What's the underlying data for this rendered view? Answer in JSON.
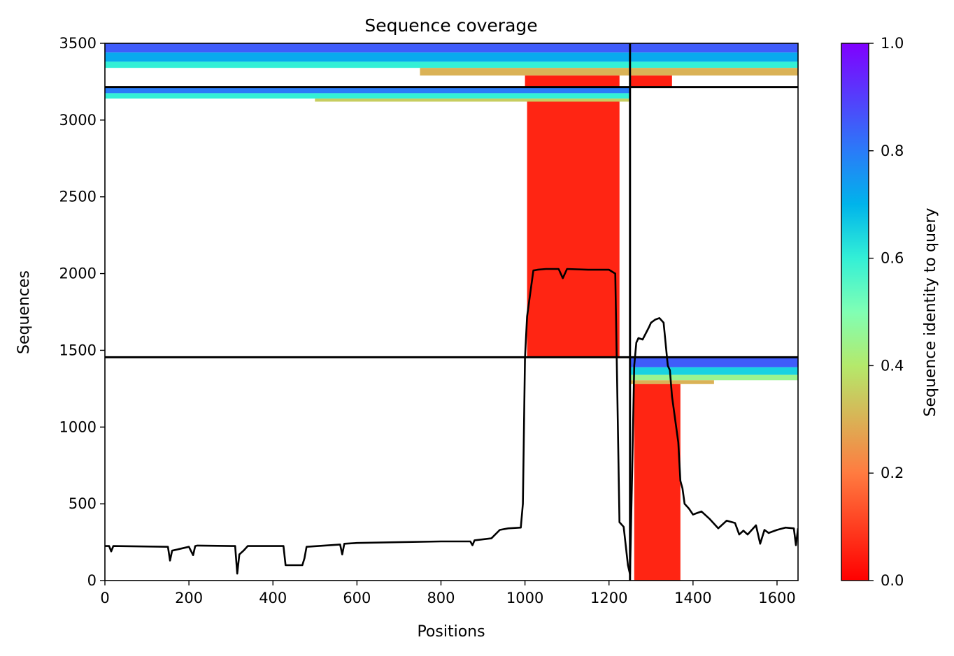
{
  "chart_data": {
    "type": "heatmap",
    "title": "Sequence coverage",
    "xlabel": "Positions",
    "ylabel": "Sequences",
    "xlim": [
      0,
      1650
    ],
    "ylim": [
      0,
      3500
    ],
    "xticks": [
      0,
      200,
      400,
      600,
      800,
      1000,
      1200,
      1400,
      1600
    ],
    "yticks": [
      0,
      500,
      1000,
      1500,
      2000,
      2500,
      3000,
      3500
    ],
    "grid": false,
    "colorbar": {
      "label": "Sequence identity to query",
      "colormap": "rainbow",
      "range": [
        0.0,
        1.0
      ],
      "ticks": [
        0.0,
        0.2,
        0.4,
        0.6,
        0.8,
        1.0
      ],
      "tick_labels": [
        "0.0",
        "0.2",
        "0.4",
        "0.6",
        "0.8",
        "1.0"
      ]
    },
    "chain_boundaries": {
      "vertical_x": [
        1250
      ],
      "horizontal_y": [
        1455,
        3215
      ]
    },
    "coverage_blocks": [
      {
        "x": [
          0,
          1650
        ],
        "y": [
          3440,
          3500
        ],
        "identity": 0.85
      },
      {
        "x": [
          0,
          1650
        ],
        "y": [
          3380,
          3440
        ],
        "identity": 0.72
      },
      {
        "x": [
          0,
          1650
        ],
        "y": [
          3340,
          3380
        ],
        "identity": 0.6
      },
      {
        "x": [
          750,
          1250
        ],
        "y": [
          3290,
          3340
        ],
        "identity": 0.3
      },
      {
        "x": [
          1250,
          1650
        ],
        "y": [
          3290,
          3340
        ],
        "identity": 0.3
      },
      {
        "x": [
          1000,
          1225
        ],
        "y": [
          3215,
          3290
        ],
        "identity": 0.05
      },
      {
        "x": [
          1250,
          1350
        ],
        "y": [
          3215,
          3290
        ],
        "identity": 0.05
      },
      {
        "x": [
          0,
          1250
        ],
        "y": [
          3175,
          3215
        ],
        "identity": 0.8
      },
      {
        "x": [
          0,
          1250
        ],
        "y": [
          3140,
          3175
        ],
        "identity": 0.6
      },
      {
        "x": [
          500,
          1250
        ],
        "y": [
          3120,
          3140
        ],
        "identity": 0.35
      },
      {
        "x": [
          1005,
          1225
        ],
        "y": [
          1455,
          3120
        ],
        "identity": 0.06
      },
      {
        "x": [
          1250,
          1650
        ],
        "y": [
          1390,
          1455
        ],
        "identity": 0.85
      },
      {
        "x": [
          1250,
          1650
        ],
        "y": [
          1340,
          1390
        ],
        "identity": 0.65
      },
      {
        "x": [
          1250,
          1650
        ],
        "y": [
          1305,
          1340
        ],
        "identity": 0.45
      },
      {
        "x": [
          1250,
          1450
        ],
        "y": [
          1280,
          1305
        ],
        "identity": 0.3
      },
      {
        "x": [
          1260,
          1370
        ],
        "y": [
          0,
          1280
        ],
        "identity": 0.06
      }
    ],
    "coverage_line": {
      "x": [
        0,
        10,
        15,
        20,
        150,
        155,
        160,
        200,
        210,
        215,
        220,
        300,
        310,
        315,
        320,
        330,
        340,
        400,
        425,
        430,
        470,
        475,
        480,
        560,
        565,
        570,
        600,
        700,
        800,
        870,
        875,
        880,
        920,
        940,
        960,
        990,
        995,
        1000,
        1005,
        1010,
        1015,
        1020,
        1030,
        1050,
        1080,
        1090,
        1100,
        1150,
        1200,
        1215,
        1220,
        1225,
        1235,
        1245,
        1250,
        1255,
        1260,
        1265,
        1270,
        1280,
        1295,
        1300,
        1310,
        1320,
        1330,
        1340,
        1345,
        1350,
        1360,
        1365,
        1370,
        1375,
        1380,
        1390,
        1400,
        1420,
        1440,
        1460,
        1480,
        1500,
        1510,
        1520,
        1530,
        1550,
        1560,
        1570,
        1580,
        1600,
        1620,
        1640,
        1645,
        1650
      ],
      "y": [
        225,
        225,
        190,
        225,
        220,
        130,
        195,
        220,
        165,
        225,
        228,
        225,
        225,
        45,
        170,
        195,
        225,
        225,
        225,
        100,
        100,
        145,
        220,
        235,
        170,
        240,
        245,
        250,
        255,
        255,
        230,
        262,
        275,
        330,
        340,
        345,
        500,
        1450,
        1720,
        1820,
        1920,
        2020,
        2025,
        2030,
        2030,
        1970,
        2030,
        2025,
        2025,
        2000,
        1200,
        380,
        350,
        100,
        40,
        700,
        1400,
        1550,
        1580,
        1570,
        1650,
        1680,
        1700,
        1710,
        1680,
        1400,
        1370,
        1200,
        1000,
        900,
        650,
        600,
        500,
        470,
        430,
        450,
        400,
        340,
        390,
        375,
        300,
        325,
        300,
        360,
        240,
        330,
        310,
        330,
        345,
        340,
        230,
        340
      ]
    }
  }
}
